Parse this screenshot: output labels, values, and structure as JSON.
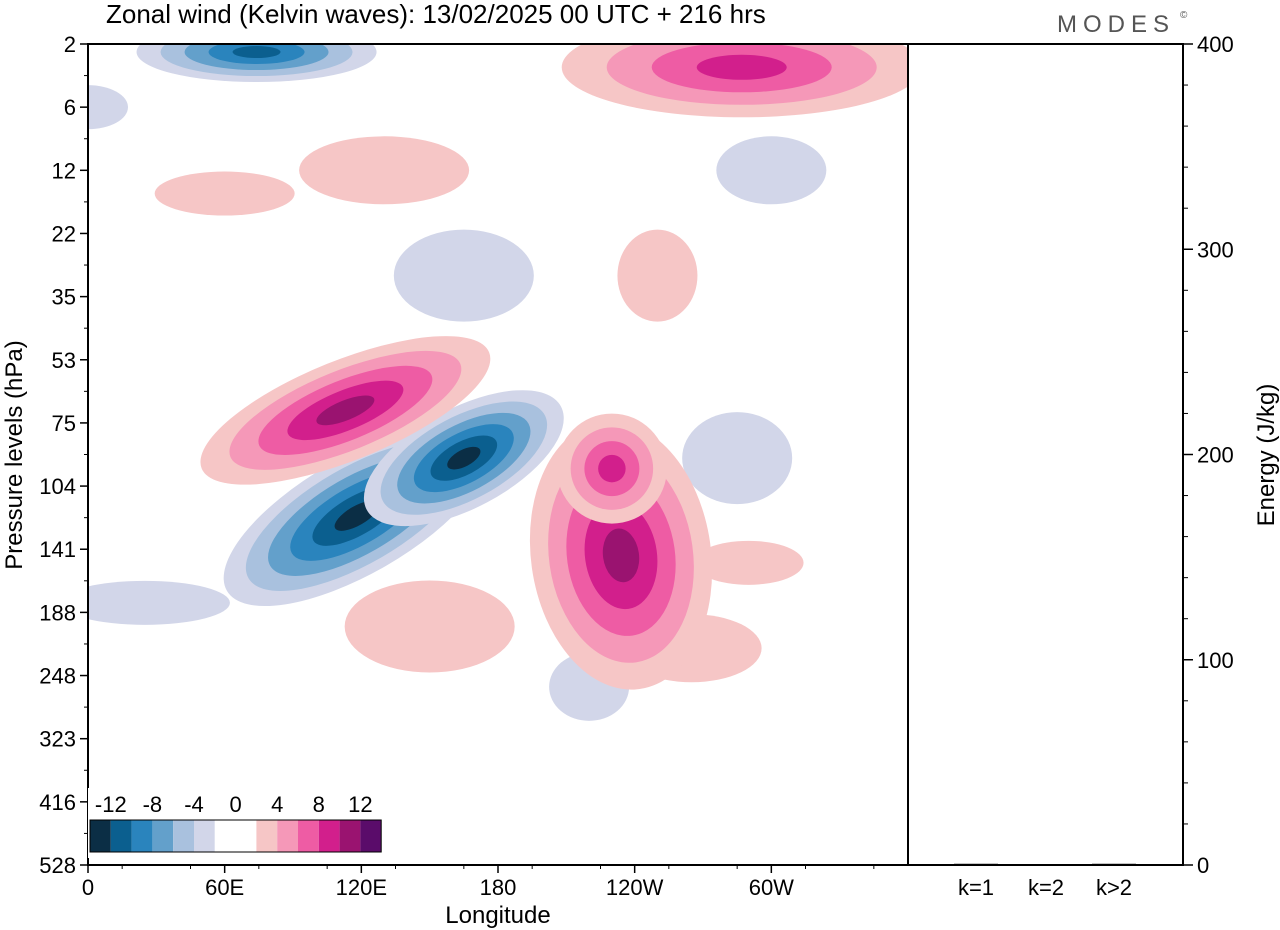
{
  "header": {
    "title": "Zonal wind (Kelvin waves):  13/02/2025  00 UTC  + 216 hrs",
    "brand": "MODES",
    "brand_mark": "©"
  },
  "colors": {
    "blue_scale": [
      "#0b2e45",
      "#0b5f8f",
      "#2a84bd",
      "#63a0cb",
      "#a9c1de",
      "#d2d6e9"
    ],
    "pink_scale": [
      "#f6c6c6",
      "#f598b8",
      "#ee5ca4",
      "#d21f8c",
      "#9a1370",
      "#5a0c6a"
    ],
    "axis": "#000000"
  },
  "chart_data": [
    {
      "type": "heatmap",
      "title": "Zonal wind (Kelvin waves):  13/02/2025  00 UTC  + 216 hrs",
      "xlabel": "Longitude",
      "ylabel": "Pressure levels (hPa)",
      "x_ticks": [
        "0",
        "60E",
        "120E",
        "180",
        "120W",
        "60W"
      ],
      "y_ticks": [
        "2",
        "6",
        "12",
        "22",
        "35",
        "53",
        "75",
        "104",
        "141",
        "188",
        "248",
        "323",
        "416",
        "528"
      ],
      "color_levels": [
        "-12",
        "-8",
        "-4",
        "0",
        "4",
        "8",
        "12"
      ],
      "grid": false,
      "legend_position": "bottom-left",
      "features": [
        {
          "sign": "negative",
          "peak": -13,
          "lon_center": 118,
          "p_center": 120,
          "desc_level": "strong"
        },
        {
          "sign": "negative",
          "peak": -12,
          "lon_center": 165,
          "p_center": 90
        },
        {
          "sign": "negative",
          "peak": -10,
          "lon_center": 74,
          "p_center": 2.3
        },
        {
          "sign": "positive",
          "peak": 11,
          "lon_center": 113,
          "p_center": 70
        },
        {
          "sign": "positive",
          "peak": 10,
          "lon_center": 234,
          "p_center": 145
        },
        {
          "sign": "positive",
          "peak": 8,
          "lon_center": 230,
          "p_center": 95
        },
        {
          "sign": "positive",
          "peak": 8,
          "lon_center": 287,
          "p_center": 3
        }
      ]
    },
    {
      "type": "bar",
      "categories": [
        "k=1",
        "k=2",
        "k>2"
      ],
      "values": [
        0.6,
        0.3,
        0.6
      ],
      "ylabel": "Energy (J/kg)",
      "y_ticks": [
        "0",
        "100",
        "200",
        "300",
        "400"
      ],
      "ylim": [
        0,
        400
      ]
    }
  ]
}
